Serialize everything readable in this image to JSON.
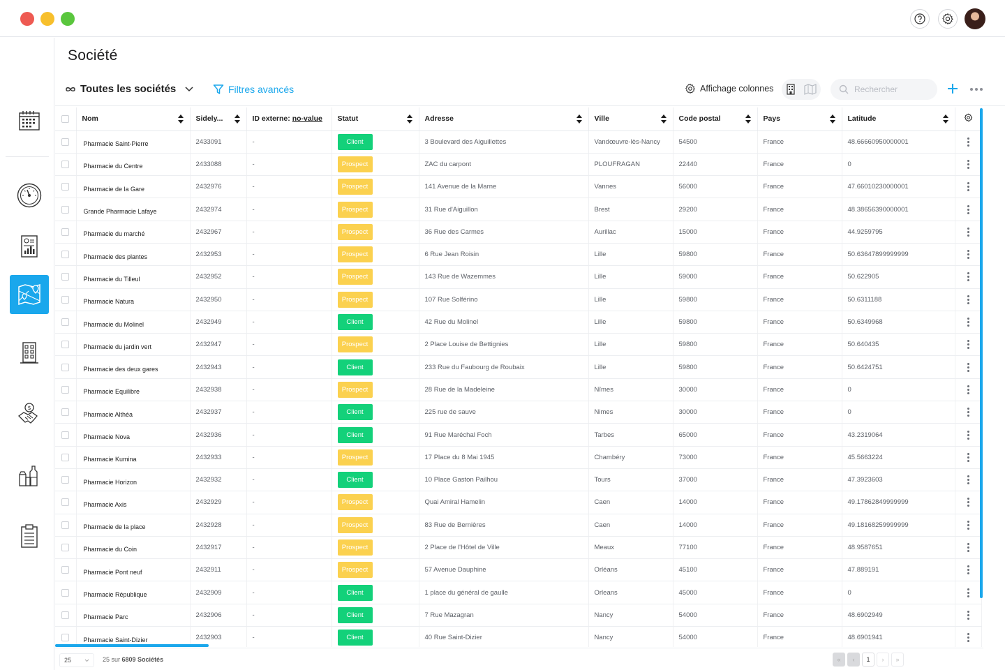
{
  "page_title": "Société",
  "toolbar": {
    "view_label": "Toutes les sociétés",
    "filters_label": "Filtres avancés",
    "columns_label": "Affichage colonnes",
    "search_placeholder": "Rechercher"
  },
  "colors": {
    "accent": "#1aa7ec",
    "client": "#13d17a",
    "prospect": "#fbd14f"
  },
  "sidebar": {
    "items": [
      {
        "icon": "calendar-icon",
        "active": false
      },
      {
        "icon": "dashboard-gauge-icon",
        "active": false
      },
      {
        "icon": "report-chart-icon",
        "active": false
      },
      {
        "icon": "map-icon",
        "active": true
      },
      {
        "icon": "building-icon",
        "active": false
      },
      {
        "icon": "handshake-dollar-icon",
        "active": false
      },
      {
        "icon": "products-icon",
        "active": false
      },
      {
        "icon": "clipboard-icon",
        "active": false
      }
    ]
  },
  "table": {
    "columns": {
      "nom": "Nom",
      "sidely": "Sidely...",
      "external_id_prefix": "ID externe:",
      "external_id_value": "no-value",
      "statut": "Statut",
      "adresse": "Adresse",
      "ville": "Ville",
      "code_postal": "Code postal",
      "pays": "Pays",
      "latitude": "Latitude"
    },
    "rows": [
      {
        "name": "Pharmacie Saint-Pierre",
        "id": "2433091",
        "ext": "-",
        "status": "Client",
        "address": "3 Boulevard des Aiguillettes",
        "city": "Vandœuvre-lès-Nancy",
        "zip": "54500",
        "country": "France",
        "lat": "48.66660950000001"
      },
      {
        "name": "Pharmacie du Centre",
        "id": "2433088",
        "ext": "-",
        "status": "Prospect",
        "address": "ZAC du carpont",
        "city": "PLOUFRAGAN",
        "zip": "22440",
        "country": "France",
        "lat": "0"
      },
      {
        "name": "Pharmacie de la Gare",
        "id": "2432976",
        "ext": "-",
        "status": "Prospect",
        "address": "141 Avenue de la Marne",
        "city": "Vannes",
        "zip": "56000",
        "country": "France",
        "lat": "47.66010230000001"
      },
      {
        "name": "Grande Pharmacie Lafaye",
        "id": "2432974",
        "ext": "-",
        "status": "Prospect",
        "address": "31 Rue d'Aiguillon",
        "city": "Brest",
        "zip": "29200",
        "country": "France",
        "lat": "48.38656390000001"
      },
      {
        "name": "Pharmacie du marché",
        "id": "2432967",
        "ext": "-",
        "status": "Prospect",
        "address": "36 Rue des Carmes",
        "city": "Aurillac",
        "zip": "15000",
        "country": "France",
        "lat": "44.9259795"
      },
      {
        "name": "Pharmacie des plantes",
        "id": "2432953",
        "ext": "-",
        "status": "Prospect",
        "address": "6 Rue Jean Roisin",
        "city": "Lille",
        "zip": "59800",
        "country": "France",
        "lat": "50.63647899999999"
      },
      {
        "name": "Pharmacie du Tilleul",
        "id": "2432952",
        "ext": "-",
        "status": "Prospect",
        "address": "143 Rue de Wazemmes",
        "city": "Lille",
        "zip": "59000",
        "country": "France",
        "lat": "50.622905"
      },
      {
        "name": "Pharmacie Natura",
        "id": "2432950",
        "ext": "-",
        "status": "Prospect",
        "address": "107 Rue Solférino",
        "city": "Lille",
        "zip": "59800",
        "country": "France",
        "lat": "50.6311188"
      },
      {
        "name": "Pharmacie du Molinel",
        "id": "2432949",
        "ext": "-",
        "status": "Client",
        "address": "42 Rue du Molinel",
        "city": "Lille",
        "zip": "59800",
        "country": "France",
        "lat": "50.6349968"
      },
      {
        "name": "Pharmacie du jardin vert",
        "id": "2432947",
        "ext": "-",
        "status": "Prospect",
        "address": "2 Place Louise de Bettignies",
        "city": "Lille",
        "zip": "59800",
        "country": "France",
        "lat": "50.640435"
      },
      {
        "name": "Pharmacie des deux gares",
        "id": "2432943",
        "ext": "-",
        "status": "Client",
        "address": "233 Rue du Faubourg de Roubaix",
        "city": "Lille",
        "zip": "59800",
        "country": "France",
        "lat": "50.6424751"
      },
      {
        "name": "Pharmacie Equilibre",
        "id": "2432938",
        "ext": "-",
        "status": "Prospect",
        "address": "28 Rue de la Madeleine",
        "city": "Nîmes",
        "zip": "30000",
        "country": "France",
        "lat": "0"
      },
      {
        "name": "Pharmacie Althéa",
        "id": "2432937",
        "ext": "-",
        "status": "Client",
        "address": "225 rue de sauve",
        "city": "Nimes",
        "zip": "30000",
        "country": "France",
        "lat": "0"
      },
      {
        "name": "Pharmacie Nova",
        "id": "2432936",
        "ext": "-",
        "status": "Client",
        "address": "91 Rue Maréchal Foch",
        "city": "Tarbes",
        "zip": "65000",
        "country": "France",
        "lat": "43.2319064"
      },
      {
        "name": "Pharmacie Kumina",
        "id": "2432933",
        "ext": "-",
        "status": "Prospect",
        "address": "17 Place du 8 Mai 1945",
        "city": "Chambéry",
        "zip": "73000",
        "country": "France",
        "lat": "45.5663224"
      },
      {
        "name": "Pharmacie Horizon",
        "id": "2432932",
        "ext": "-",
        "status": "Client",
        "address": "10 Place Gaston Pailhou",
        "city": "Tours",
        "zip": "37000",
        "country": "France",
        "lat": "47.3923603"
      },
      {
        "name": "Pharmacie Axis",
        "id": "2432929",
        "ext": "-",
        "status": "Prospect",
        "address": "Quai Amiral Hamelin",
        "city": "Caen",
        "zip": "14000",
        "country": "France",
        "lat": "49.17862849999999"
      },
      {
        "name": "Pharmacie de la place",
        "id": "2432928",
        "ext": "-",
        "status": "Prospect",
        "address": "83 Rue de Bernières",
        "city": "Caen",
        "zip": "14000",
        "country": "France",
        "lat": "49.18168259999999"
      },
      {
        "name": "Pharmacie du Coin",
        "id": "2432917",
        "ext": "-",
        "status": "Prospect",
        "address": "2 Place de l'Hôtel de Ville",
        "city": "Meaux",
        "zip": "77100",
        "country": "France",
        "lat": "48.9587651"
      },
      {
        "name": "Pharmacie Pont neuf",
        "id": "2432911",
        "ext": "-",
        "status": "Prospect",
        "address": "57 Avenue Dauphine",
        "city": "Orléans",
        "zip": "45100",
        "country": "France",
        "lat": "47.889191"
      },
      {
        "name": "Pharmacie République",
        "id": "2432909",
        "ext": "-",
        "status": "Client",
        "address": "1 place du général de gaulle",
        "city": "Orleans",
        "zip": "45000",
        "country": "France",
        "lat": "0"
      },
      {
        "name": "Pharmacie Parc",
        "id": "2432906",
        "ext": "-",
        "status": "Client",
        "address": "7 Rue Mazagran",
        "city": "Nancy",
        "zip": "54000",
        "country": "France",
        "lat": "48.6902949"
      },
      {
        "name": "Pharmacie Saint-Dizier",
        "id": "2432903",
        "ext": "-",
        "status": "Client",
        "address": "40 Rue Saint-Dizier",
        "city": "Nancy",
        "zip": "54000",
        "country": "France",
        "lat": "48.6901941"
      }
    ]
  },
  "footer": {
    "per_page": "25",
    "count_prefix": "25 sur",
    "count_total": "6809 Sociétés",
    "current_page": "1"
  }
}
